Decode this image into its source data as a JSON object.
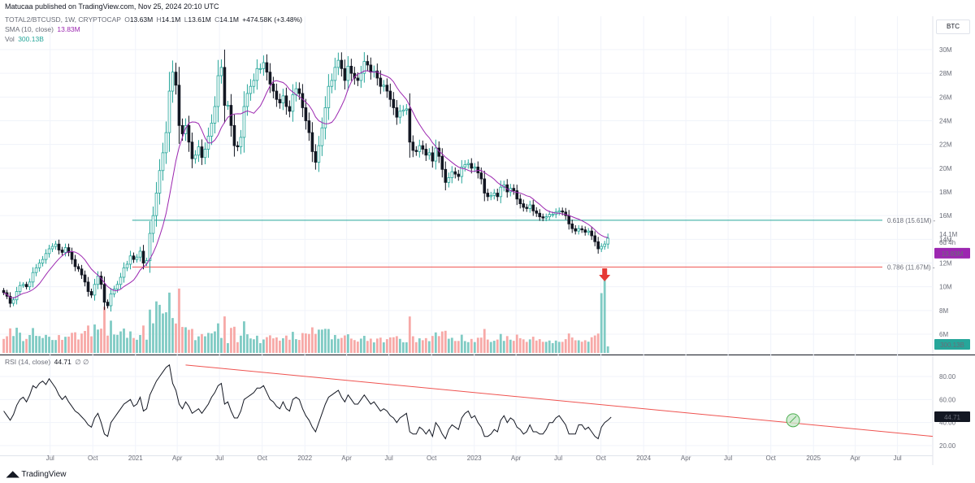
{
  "header": {
    "publisher_line": "Matucaa published on TradingView.com, Nov 25, 2024 20:10 UTC"
  },
  "legend": {
    "symbol": "TOTAL2/BTCUSD, 1W, CRYPTOCAP",
    "o_label": "O",
    "o_value": "13.63M",
    "h_label": "H",
    "h_value": "14.1M",
    "l_label": "L",
    "l_value": "13.61M",
    "c_label": "C",
    "c_value": "14.1M",
    "change": "+474.58K (+3.48%)",
    "sma_label": "SMA (10, close)",
    "sma_value": "13.83M",
    "vol_label": "Vol",
    "vol_value": "300.13B",
    "rsi_label": "RSI (14, close)",
    "rsi_value": "44.71",
    "rsi_extra": "∅ ∅"
  },
  "currency_badge": "BTC",
  "footer": {
    "brand": "TradingView"
  },
  "colors": {
    "up": "#26a69a",
    "down": "#131722",
    "sma": "#9c27b0",
    "vol_up": "#80cbc4",
    "vol_down": "#f7a9a7",
    "fib618": "#26a69a",
    "fib786": "#ef5350",
    "rsi": "#131722",
    "trend": "#ef5350",
    "signal": "#4caf50"
  },
  "chart_data": [
    {
      "type": "candlestick",
      "panel": "price",
      "title": "TOTAL2/BTCUSD, 1W, CRYPTOCAP",
      "yscale": "linear",
      "ylim": [
        5000000,
        31000000
      ],
      "y_ticks": [
        "30M",
        "28M",
        "26M",
        "24M",
        "22M",
        "20M",
        "18M",
        "16M",
        "14M",
        "12M",
        "10M",
        "8M",
        "6M"
      ],
      "x_ticks": [
        "Jul",
        "Oct",
        "2021",
        "Apr",
        "Jul",
        "Oct",
        "2022",
        "Apr",
        "Jul",
        "Oct",
        "2023",
        "Apr",
        "Jul",
        "Oct",
        "2024",
        "Apr",
        "Jul",
        "Oct",
        "2025",
        "Apr",
        "Jul"
      ],
      "x_tick_dates": [
        "2020-07-01",
        "2020-10-01",
        "2021-01-01",
        "2021-04-01",
        "2021-07-01",
        "2021-10-01",
        "2022-01-01",
        "2022-04-01",
        "2022-07-01",
        "2022-10-01",
        "2023-01-01",
        "2023-04-01",
        "2023-07-01",
        "2023-10-01",
        "2024-01-01",
        "2024-04-01",
        "2024-07-01",
        "2024-10-01",
        "2025-01-01",
        "2025-04-01",
        "2025-07-01"
      ],
      "x_range": [
        "2020-03-15",
        "2025-09-15"
      ],
      "closes_weekly_from": "2020-03-23",
      "closes": [
        9.5,
        9.2,
        8.6,
        8.9,
        9.6,
        10.1,
        10.2,
        10.0,
        10.4,
        11.2,
        11.6,
        12.0,
        12.3,
        12.8,
        13.2,
        13.4,
        13.6,
        13.1,
        12.9,
        13.3,
        12.9,
        12.3,
        11.7,
        11.5,
        11.0,
        10.4,
        9.6,
        9.3,
        10.2,
        10.9,
        10.2,
        8.7,
        8.4,
        9.4,
        9.8,
        10.2,
        10.8,
        11.6,
        11.9,
        12.6,
        12.3,
        12.5,
        13.0,
        12.0,
        12.2,
        14.5,
        16.0,
        17.9,
        19.8,
        21.3,
        23.0,
        26.5,
        28.1,
        27.0,
        23.6,
        22.9,
        23.6,
        22.2,
        20.8,
        21.1,
        21.8,
        20.9,
        21.6,
        22.7,
        23.8,
        25.2,
        27.8,
        28.5,
        25.3,
        25.3,
        23.6,
        21.9,
        21.8,
        22.6,
        25.2,
        26.3,
        26.9,
        27.4,
        28.4,
        28.4,
        28.9,
        28.1,
        27.1,
        26.5,
        25.8,
        25.5,
        26.1,
        25.2,
        24.8,
        26.2,
        26.7,
        26.3,
        25.1,
        24.0,
        23.0,
        21.4,
        20.5,
        21.9,
        23.4,
        25.1,
        26.9,
        27.4,
        28.5,
        29.1,
        28.4,
        27.4,
        28.6,
        28.0,
        27.6,
        27.4,
        28.0,
        29.0,
        28.7,
        28.1,
        28.2,
        27.6,
        26.9,
        27.0,
        26.5,
        25.8,
        25.1,
        24.3,
        24.8,
        24.9,
        25.0,
        22.2,
        21.5,
        21.4,
        21.9,
        21.6,
        21.1,
        21.3,
        20.6,
        21.7,
        21.0,
        19.9,
        18.8,
        19.2,
        19.7,
        19.5,
        19.3,
        20.1,
        20.3,
        20.4,
        20.0,
        20.1,
        19.6,
        19.1,
        17.9,
        17.6,
        17.7,
        17.9,
        17.6,
        18.4,
        18.6,
        18.0,
        18.3,
        18.1,
        17.4,
        17.0,
        16.7,
        16.6,
        16.9,
        16.4,
        16.2,
        15.9,
        15.8,
        15.9,
        16.1,
        16.1,
        16.3,
        16.4,
        16.3,
        16.0,
        15.3,
        14.9,
        14.7,
        14.9,
        14.8,
        14.6,
        14.7,
        14.3,
        13.8,
        13.2,
        13.4,
        13.6,
        14.1
      ],
      "sma": {
        "name": "SMA (10, close)",
        "last_value": "13.83M"
      },
      "price_axis_labels": {
        "last_price": "14.1M",
        "countdown": "6d 4h",
        "sma_last": "13.83M"
      },
      "horizontal_levels": [
        {
          "label": "0.618 (15.61M)",
          "value": 15610000
        },
        {
          "label": "0.786 (11.67M)",
          "value": 11670000
        }
      ],
      "annotations": [
        {
          "type": "arrow-down",
          "note": "red arrow above latest volume spike"
        }
      ]
    },
    {
      "type": "bar",
      "panel": "volume",
      "series_name": "Vol",
      "last_value": "300.13B",
      "relative_heights_pattern": "low baseline with spikes in early 2021 (Apr), late 2021, early 2023 and a tall spike at the latest weeks"
    },
    {
      "type": "line",
      "panel": "rsi",
      "title": "RSI (14, close)",
      "last_value": "44.71",
      "ylim": [
        15,
        95
      ],
      "y_ticks": [
        "80.00",
        "60.00",
        "40.00",
        "20.00"
      ],
      "values_weekly_from": "2020-03-23",
      "values": [
        50,
        46,
        42,
        47,
        55,
        60,
        62,
        58,
        64,
        72,
        70,
        74,
        76,
        73,
        78,
        74,
        70,
        64,
        60,
        63,
        58,
        54,
        50,
        48,
        45,
        42,
        38,
        36,
        44,
        48,
        40,
        30,
        28,
        40,
        44,
        48,
        52,
        56,
        58,
        60,
        54,
        56,
        62,
        50,
        52,
        64,
        70,
        76,
        80,
        84,
        88,
        90,
        74,
        68,
        56,
        52,
        58,
        54,
        48,
        50,
        52,
        48,
        52,
        56,
        62,
        66,
        72,
        74,
        56,
        58,
        50,
        44,
        44,
        50,
        60,
        62,
        64,
        66,
        70,
        70,
        72,
        66,
        60,
        58,
        54,
        52,
        58,
        52,
        50,
        60,
        62,
        60,
        52,
        46,
        42,
        36,
        32,
        40,
        48,
        56,
        62,
        64,
        66,
        68,
        62,
        58,
        64,
        60,
        56,
        56,
        60,
        64,
        60,
        56,
        58,
        54,
        50,
        52,
        50,
        46,
        44,
        40,
        44,
        46,
        48,
        32,
        30,
        30,
        36,
        34,
        30,
        34,
        28,
        40,
        36,
        30,
        26,
        34,
        38,
        36,
        34,
        44,
        48,
        50,
        44,
        46,
        40,
        36,
        28,
        28,
        30,
        34,
        32,
        42,
        46,
        40,
        44,
        42,
        36,
        34,
        30,
        32,
        38,
        32,
        32,
        30,
        30,
        34,
        40,
        40,
        44,
        46,
        42,
        38,
        30,
        30,
        30,
        38,
        38,
        34,
        36,
        32,
        28,
        26,
        36,
        40,
        42,
        44.71
      ],
      "trendline": {
        "from": "2021-04-19",
        "from_value": 90,
        "to": "2025-09-15",
        "to_value": 28,
        "description": "descending resistance line"
      },
      "signal_circle_at": "2024-11-18"
    }
  ]
}
